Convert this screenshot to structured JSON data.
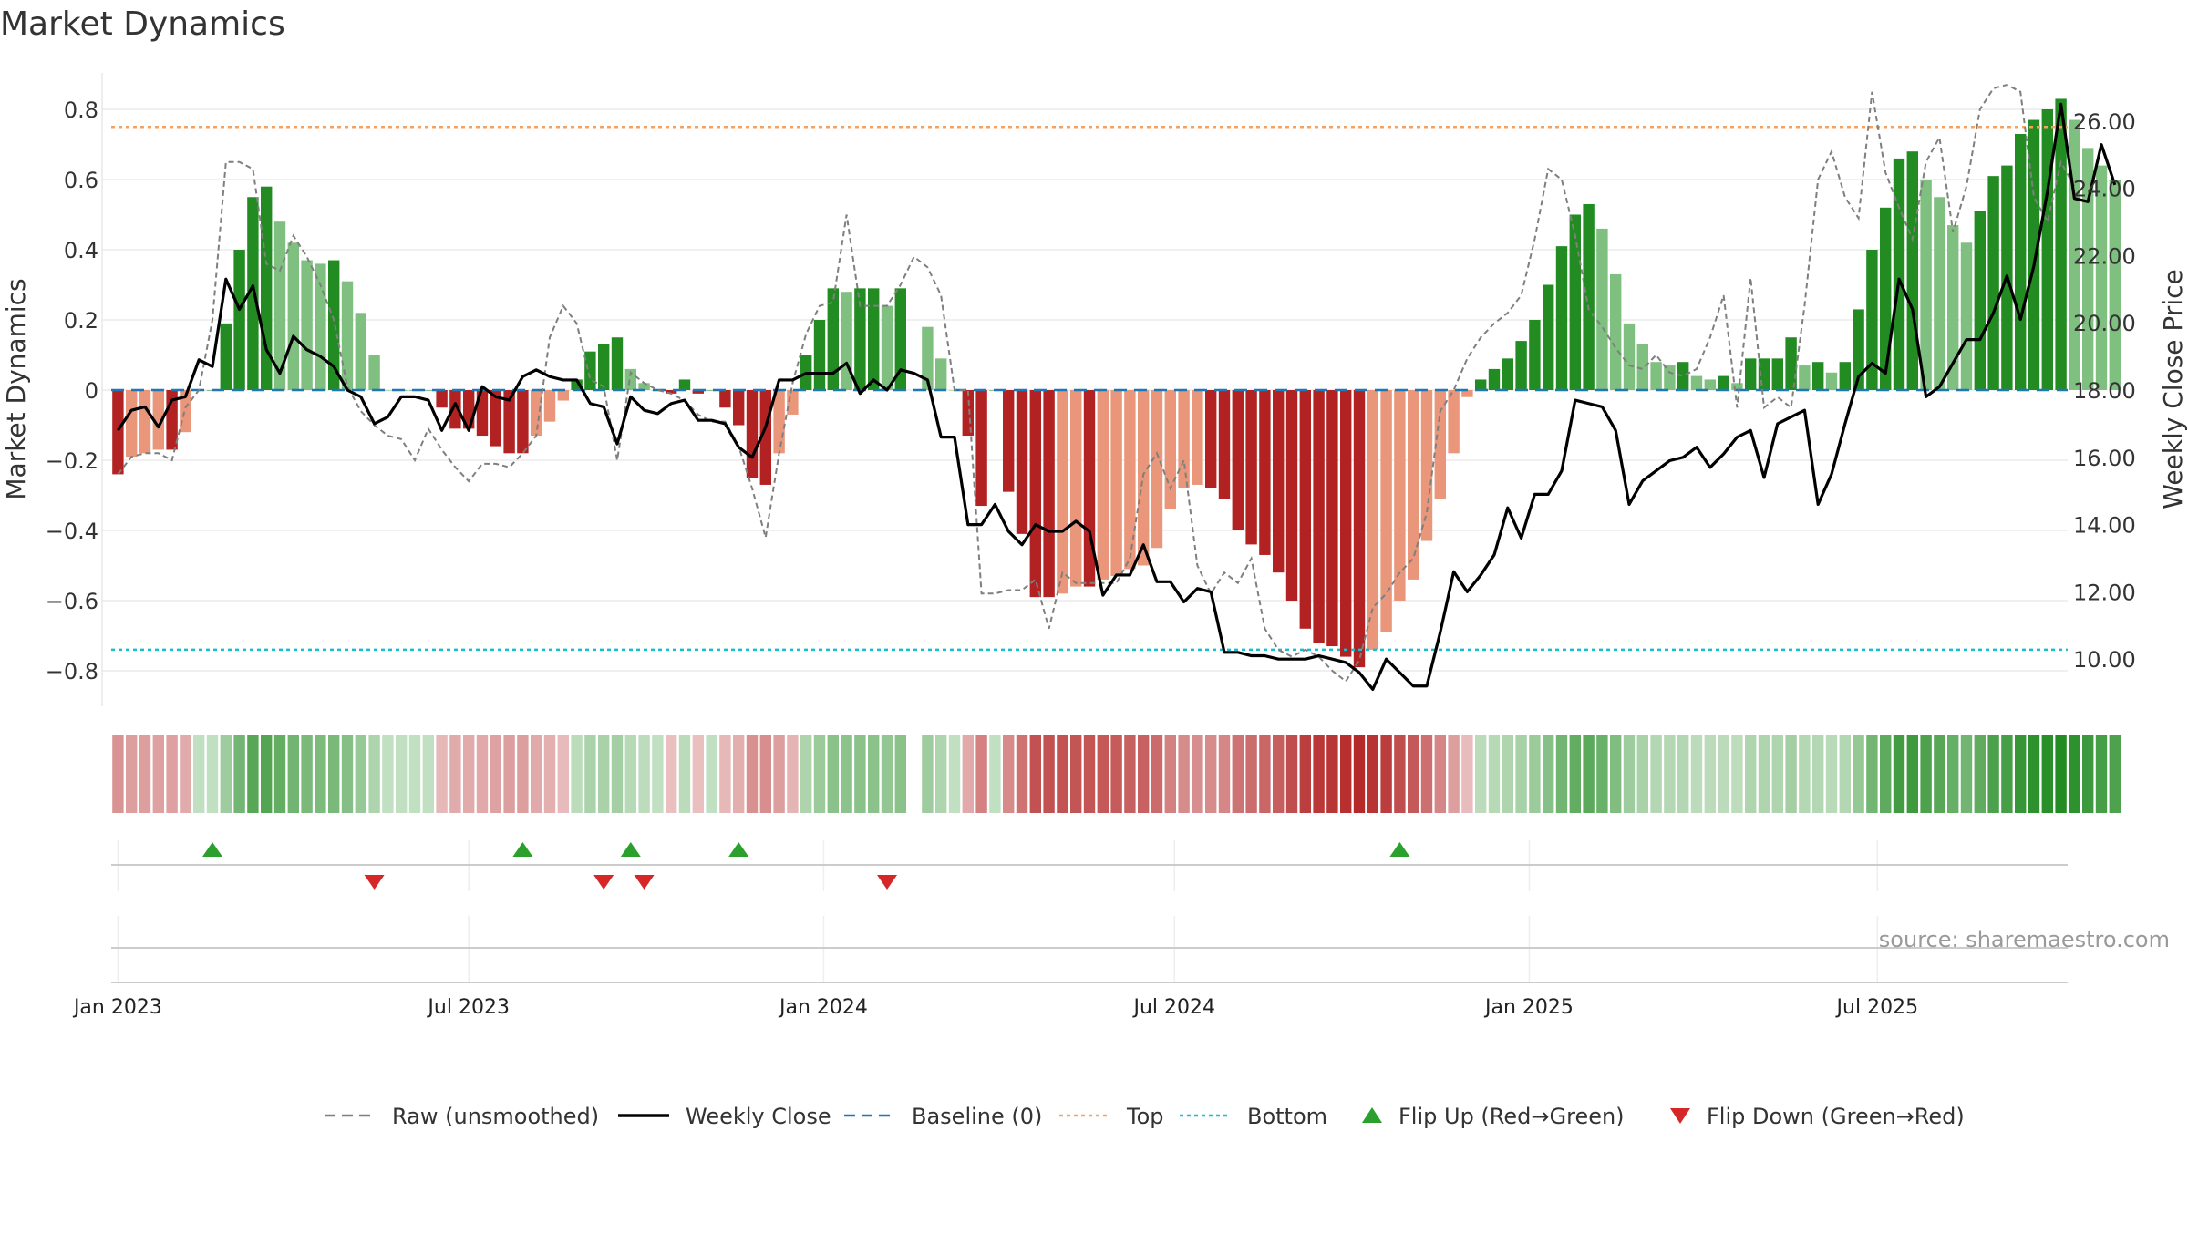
{
  "chart_data": {
    "type": "bar",
    "title": "Market Dynamics",
    "ylabel_left": "Market Dynamics",
    "ylabel_right": "Weekly Close Price",
    "ylim_left": [
      -0.9,
      0.9
    ],
    "ylim_right": [
      8.7,
      27.6
    ],
    "left_ticks": [
      "0.8",
      "0.6",
      "0.4",
      "0.2",
      "0",
      "−0.2",
      "−0.4",
      "−0.6",
      "−0.8"
    ],
    "left_tick_values": [
      0.8,
      0.6,
      0.4,
      0.2,
      0,
      -0.2,
      -0.4,
      -0.6,
      -0.8
    ],
    "right_ticks": [
      "26.00",
      "24.00",
      "22.00",
      "20.00",
      "18.00",
      "16.00",
      "14.00",
      "12.00",
      "10.00"
    ],
    "right_tick_values": [
      26,
      24,
      22,
      20,
      18,
      16,
      14,
      12,
      10
    ],
    "top_level": 0.75,
    "bottom_level": -0.74,
    "grid": true,
    "x_axis": {
      "start": "Jan 2023",
      "end": "Sep 2025",
      "tick_labels": [
        "Jan 2023",
        "Jul 2023",
        "Jan 2024",
        "Jul 2024",
        "Jan 2025",
        "Jul 2025"
      ],
      "tick_weeks": [
        0,
        26,
        52.3,
        78.3,
        104.6,
        130.4
      ]
    },
    "weeks": 145,
    "momentum": [
      -0.24,
      -0.19,
      -0.18,
      -0.17,
      -0.17,
      -0.12,
      0.0,
      0.0,
      0.19,
      0.4,
      0.55,
      0.58,
      0.48,
      0.42,
      0.37,
      0.36,
      0.37,
      0.31,
      0.22,
      0.1,
      0.0,
      0.0,
      0.0,
      0.0,
      -0.05,
      -0.11,
      -0.11,
      -0.13,
      -0.16,
      -0.18,
      -0.18,
      -0.13,
      -0.09,
      -0.03,
      0.03,
      0.11,
      0.13,
      0.15,
      0.06,
      0.02,
      0.0,
      -0.01,
      0.03,
      -0.01,
      0.0,
      -0.05,
      -0.1,
      -0.25,
      -0.27,
      -0.18,
      -0.07,
      0.1,
      0.2,
      0.29,
      0.28,
      0.29,
      0.29,
      0.24,
      0.29,
      0.27,
      0.18,
      0.09,
      0.0,
      -0.13,
      -0.33,
      0.0,
      -0.29,
      -0.41,
      -0.59,
      -0.59,
      -0.58,
      -0.56,
      -0.56,
      -0.54,
      -0.53,
      -0.51,
      -0.5,
      -0.45,
      -0.34,
      -0.28,
      -0.27,
      -0.28,
      -0.31,
      -0.4,
      -0.44,
      -0.47,
      -0.52,
      -0.6,
      -0.68,
      -0.72,
      -0.73,
      -0.76,
      -0.79,
      -0.74,
      -0.69,
      -0.6,
      -0.54,
      -0.43,
      -0.31,
      -0.18,
      -0.02,
      0.03,
      0.06,
      0.09,
      0.14,
      0.2,
      0.3,
      0.41,
      0.5,
      0.53,
      0.46,
      0.33,
      0.19,
      0.13,
      0.08,
      0.07,
      0.08,
      0.04,
      0.03,
      0.04,
      0.02,
      0.09,
      0.09,
      0.09,
      0.15,
      0.07,
      0.08,
      0.05,
      0.08,
      0.23,
      0.4,
      0.52,
      0.66,
      0.68,
      0.6,
      0.55,
      0.47,
      0.42,
      0.51,
      0.61,
      0.64,
      0.73,
      0.77,
      0.8,
      0.83,
      0.77,
      0.69,
      0.64,
      0.6
    ],
    "raw": [
      -0.24,
      -0.19,
      -0.18,
      -0.18,
      -0.2,
      -0.05,
      0.0,
      0.2,
      0.65,
      0.65,
      0.63,
      0.36,
      0.34,
      0.44,
      0.38,
      0.3,
      0.2,
      0.01,
      -0.06,
      -0.1,
      -0.13,
      -0.14,
      -0.2,
      -0.11,
      -0.17,
      -0.22,
      -0.26,
      -0.21,
      -0.21,
      -0.22,
      -0.18,
      -0.13,
      0.15,
      0.24,
      0.19,
      0.03,
      0.01,
      -0.2,
      0.05,
      0.02,
      0.0,
      -0.01,
      -0.03,
      -0.07,
      -0.09,
      -0.09,
      -0.16,
      -0.28,
      -0.42,
      -0.18,
      0.02,
      0.16,
      0.24,
      0.25,
      0.5,
      0.24,
      0.24,
      0.24,
      0.3,
      0.38,
      0.35,
      0.27,
      0.0,
      0.0,
      -0.58,
      -0.58,
      -0.57,
      -0.57,
      -0.54,
      -0.68,
      -0.52,
      -0.55,
      -0.55,
      -0.55,
      -0.55,
      -0.48,
      -0.24,
      -0.18,
      -0.28,
      -0.2,
      -0.5,
      -0.58,
      -0.52,
      -0.55,
      -0.48,
      -0.68,
      -0.74,
      -0.76,
      -0.74,
      -0.76,
      -0.8,
      -0.83,
      -0.77,
      -0.62,
      -0.58,
      -0.52,
      -0.48,
      -0.35,
      -0.06,
      0.0,
      0.09,
      0.15,
      0.19,
      0.22,
      0.27,
      0.43,
      0.63,
      0.6,
      0.44,
      0.23,
      0.18,
      0.12,
      0.07,
      0.06,
      0.1,
      0.05,
      0.04,
      0.06,
      0.15,
      0.27,
      -0.05,
      0.32,
      -0.05,
      -0.02,
      -0.05,
      0.24,
      0.6,
      0.68,
      0.55,
      0.49,
      0.85,
      0.62,
      0.52,
      0.43,
      0.65,
      0.72,
      0.45,
      0.58,
      0.8,
      0.86,
      0.87,
      0.85,
      0.55,
      0.48,
      0.65,
      0.58
    ],
    "close": [
      16.8,
      17.4,
      17.5,
      16.9,
      17.7,
      17.8,
      18.9,
      18.7,
      21.3,
      20.4,
      21.1,
      19.2,
      18.5,
      19.6,
      19.2,
      19.0,
      18.7,
      18.0,
      17.8,
      17.0,
      17.2,
      17.8,
      17.8,
      17.7,
      16.8,
      17.6,
      16.8,
      18.1,
      17.8,
      17.7,
      18.4,
      18.6,
      18.4,
      18.3,
      18.3,
      17.6,
      17.5,
      16.4,
      17.8,
      17.4,
      17.3,
      17.6,
      17.7,
      17.1,
      17.1,
      17.0,
      16.3,
      16.0,
      16.9,
      18.3,
      18.3,
      18.5,
      18.5,
      18.5,
      18.8,
      17.9,
      18.3,
      18.0,
      18.6,
      18.5,
      18.3,
      16.6,
      16.6,
      14.0,
      14.0,
      14.6,
      13.8,
      13.4,
      14.0,
      13.8,
      13.8,
      14.1,
      13.8,
      11.9,
      12.5,
      12.5,
      13.4,
      12.3,
      12.3,
      11.7,
      12.1,
      12.0,
      10.2,
      10.2,
      10.1,
      10.1,
      10.0,
      10.0,
      10.0,
      10.1,
      10.0,
      9.9,
      9.6,
      9.1,
      10.0,
      9.6,
      9.2,
      9.2,
      10.8,
      12.6,
      12.0,
      12.5,
      13.1,
      14.5,
      13.6,
      14.9,
      14.9,
      15.6,
      17.7,
      17.6,
      17.5,
      16.8,
      14.6,
      15.3,
      15.6,
      15.9,
      16.0,
      16.3,
      15.7,
      16.1,
      16.6,
      16.8,
      15.4,
      17.0,
      17.2,
      17.4,
      14.6,
      15.5,
      17.0,
      18.4,
      18.8,
      18.5,
      21.3,
      20.4,
      17.8,
      18.1,
      18.8,
      19.5,
      19.5,
      20.3,
      21.4,
      20.1,
      21.7,
      23.9,
      26.5,
      23.7,
      23.6,
      25.3,
      24.1
    ]
  },
  "flip_up_weeks": [
    7,
    30,
    38,
    46,
    95
  ],
  "flip_down_weeks": [
    19,
    36,
    39,
    57
  ],
  "gap_weeks": [
    59
  ],
  "legend": [
    {
      "label": "Raw (unsmoothed)",
      "kind": "dashed-line",
      "color": "#7f7f7f"
    },
    {
      "label": "Weekly Close",
      "kind": "line",
      "color": "#000000"
    },
    {
      "label": "Baseline (0)",
      "kind": "dashed-line",
      "color": "#1f77b4"
    },
    {
      "label": "Top",
      "kind": "dotted-line",
      "color": "#f4a261"
    },
    {
      "label": "Bottom",
      "kind": "dotted-line",
      "color": "#17becf"
    },
    {
      "label": "Flip Up (Red→Green)",
      "kind": "triangle-up",
      "color": "#2ca02c"
    },
    {
      "label": "Flip Down (Green→Red)",
      "kind": "triangle-down",
      "color": "#d62728"
    }
  ],
  "source": "source: sharemaestro.com",
  "colors": {
    "dark_green": "#228b22",
    "light_green": "#7fbf7f",
    "dark_red": "#b22222",
    "light_red": "#e9967a",
    "top": "#f4a261",
    "bottom": "#17becf",
    "baseline": "#1f77b4",
    "raw": "#7f7f7f",
    "close": "#000000"
  }
}
